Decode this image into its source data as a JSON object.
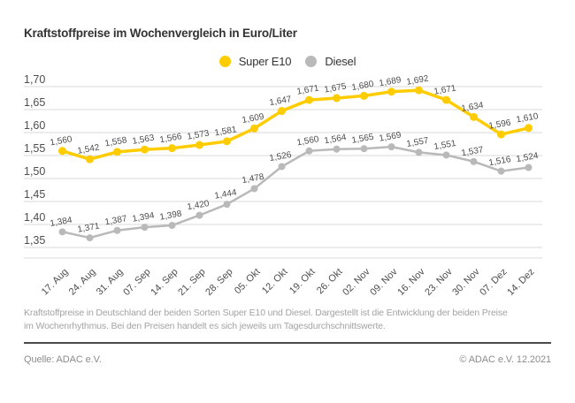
{
  "title": "Kraftstoffpreise im Wochenvergleich in Euro/Liter",
  "chart_data": {
    "type": "line",
    "categories": [
      "17. Aug",
      "24. Aug",
      "31. Aug",
      "07. Sep",
      "14. Sep",
      "21. Sep",
      "28. Sep",
      "05. Okt",
      "12. Okt",
      "19. Okt",
      "26. Okt",
      "02. Nov",
      "09. Nov",
      "16. Nov",
      "23. Nov",
      "30. Nov",
      "07. Dez",
      "14. Dez"
    ],
    "series": [
      {
        "name": "Super E10",
        "color": "#FFCC00",
        "values": [
          1.56,
          1.542,
          1.558,
          1.563,
          1.566,
          1.573,
          1.581,
          1.609,
          1.647,
          1.671,
          1.675,
          1.68,
          1.689,
          1.692,
          1.671,
          1.634,
          1.596,
          1.61
        ]
      },
      {
        "name": "Diesel",
        "color": "#B9B9B9",
        "values": [
          1.384,
          1.371,
          1.387,
          1.394,
          1.398,
          1.42,
          1.444,
          1.478,
          1.526,
          1.56,
          1.564,
          1.565,
          1.569,
          1.557,
          1.551,
          1.537,
          1.516,
          1.524
        ]
      }
    ],
    "title": "Kraftstoffpreise im Wochenvergleich in Euro/Liter",
    "xlabel": "",
    "ylabel": "Euro/Liter",
    "ylim": [
      1.35,
      1.7
    ],
    "ytick_step": 0.05,
    "ytick_labels": [
      "1,70",
      "1,65",
      "1,60",
      "1,55",
      "1,50",
      "1,45",
      "1,40",
      "1,35"
    ],
    "grid": true,
    "legend_position": "top-center",
    "decimal_separator": ",",
    "colors": {
      "gridline": "#d9d9d9",
      "tick_label": "#4d4d4d",
      "data_label": "#4d4d4d"
    }
  },
  "footnote": "Kraftstoffpreise in Deutschland der beiden Sorten Super E10 und Diesel. Dargestellt ist die Entwicklung der beiden Preise im Wochenrhythmus. Bei den Preisen handelt es sich jeweils um Tagesdurchschnittswerte.",
  "source": "Quelle: ADAC e.V.",
  "copyright": "© ADAC e.V. 12.2021"
}
